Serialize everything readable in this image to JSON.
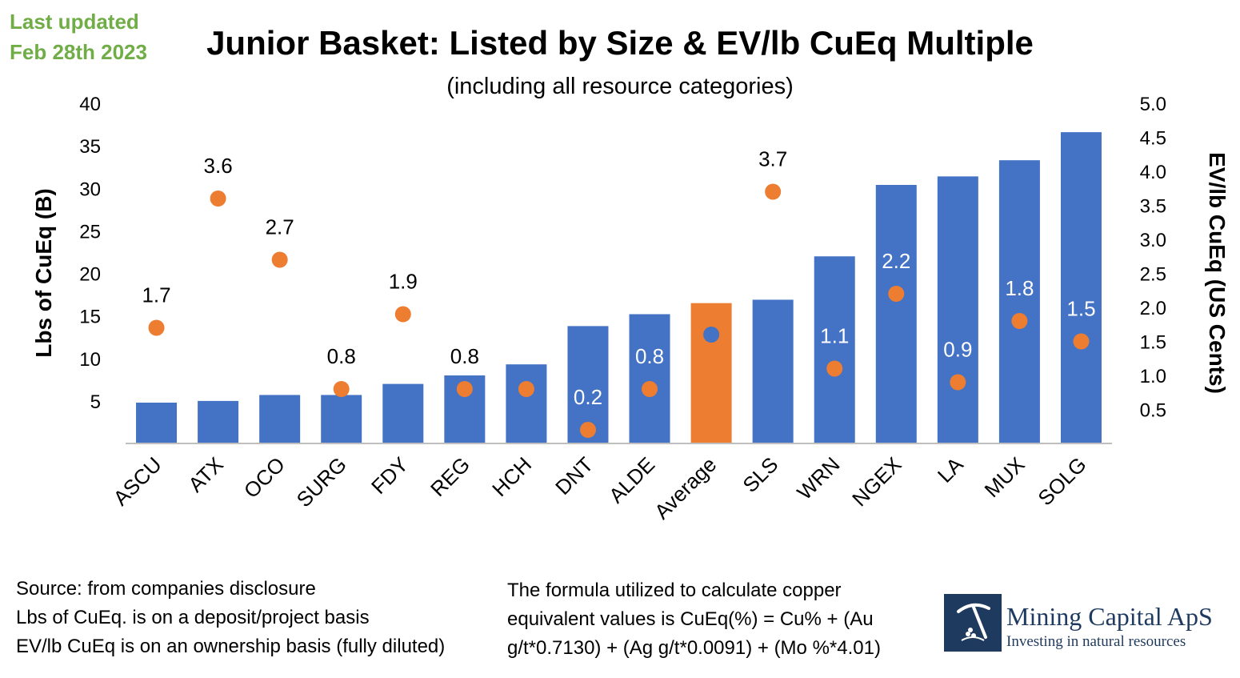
{
  "header": {
    "updated_line1": "Last updated",
    "updated_line2": "Feb 28th 2023"
  },
  "chart_data": {
    "type": "bar",
    "title": "Junior Basket: Listed by Size & EV/lb CuEq Multiple",
    "subtitle": "(including all resource categories)",
    "categories": [
      "ASCU",
      "ATX",
      "OCO",
      "SURG",
      "FDY",
      "REG",
      "HCH",
      "DNT",
      "ALDE",
      "Average",
      "SLS",
      "WRN",
      "NGEX",
      "LA",
      "MUX",
      "SOLG"
    ],
    "series": [
      {
        "name": "Lbs of CuEq (B)",
        "kind": "bar",
        "axis": "left",
        "values": [
          4.8,
          5.0,
          5.7,
          5.7,
          7.0,
          8.0,
          9.3,
          13.8,
          15.2,
          16.5,
          16.9,
          22.0,
          30.4,
          31.4,
          33.3,
          36.6
        ]
      },
      {
        "name": "EV/lb CuEq (US Cents)",
        "kind": "scatter",
        "axis": "right",
        "values": [
          1.7,
          3.6,
          2.7,
          0.8,
          1.9,
          0.8,
          0.8,
          0.2,
          0.8,
          1.6,
          3.7,
          1.1,
          2.2,
          0.9,
          1.8,
          1.5
        ],
        "labels": [
          "1.7",
          "3.6",
          "2.7",
          "0.8",
          "1.9",
          "0.8",
          "0.8",
          "0.2",
          "0.8",
          "1.6",
          "3.7",
          "1.1",
          "2.2",
          "0.9",
          "1.8",
          "1.5"
        ]
      }
    ],
    "highlight_category": "Average",
    "y_left": {
      "label": "Lbs of CuEq (B)",
      "ylim": [
        0,
        40
      ],
      "ticks": [
        "5",
        "10",
        "15",
        "20",
        "25",
        "30",
        "35",
        "40"
      ]
    },
    "y_right": {
      "label": "EV/lb CuEq (US Cents)",
      "ylim": [
        0,
        5
      ],
      "ticks": [
        "0.5",
        "1.0",
        "1.5",
        "2.0",
        "2.5",
        "3.0",
        "3.5",
        "4.0",
        "4.5",
        "5.0"
      ]
    },
    "grid": false,
    "colors": {
      "bar": "#4472c4",
      "highlight_bar": "#ed7d31",
      "dot": "#ed7d31",
      "highlight_dot": "#4472c4"
    }
  },
  "notes": {
    "left": [
      "Source: from companies disclosure",
      "Lbs of CuEq. is on a deposit/project basis",
      "EV/lb CuEq is on an ownership basis (fully diluted)"
    ],
    "right": [
      "The formula utilized to calculate copper",
      "equivalent values is CuEq(%) = Cu% + (Au",
      "g/t*0.7130) + (Ag g/t*0.0091) + (Mo %*4.01)"
    ]
  },
  "logo": {
    "name": "Mining Capital ApS",
    "tagline": "Investing in natural resources",
    "icon": "pickaxe-icon"
  }
}
